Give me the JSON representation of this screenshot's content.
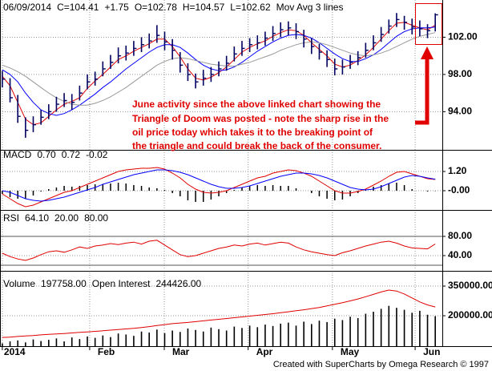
{
  "footer": "Created with SuperCharts by Omega Research © 1997",
  "chart_data": [
    {
      "type": "ohlc",
      "header": [
        {
          "text": "06/09/2014",
          "color": "#000000"
        },
        {
          "text": "C=104.41",
          "color": "#000000"
        },
        {
          "text": "+1.75",
          "color": "#00b000"
        },
        {
          "text": "O=102.78",
          "color": "#000000"
        },
        {
          "text": "H=104.57",
          "color": "#000000"
        },
        {
          "text": "L=102.62",
          "color": "#000000"
        },
        {
          "text": "Mov Avg 3 lines",
          "color": "#000000"
        }
      ],
      "annotation": [
        "June activity since the above linked chart showing the",
        "Triangle of Doom was posted - note the sharp rise in the",
        "oil price today which takes it to the breaking point of",
        "the triangle and could break the back of the consumer."
      ],
      "color": "#000060",
      "high": [
        98.4,
        97.6,
        95.8,
        93.4,
        93.5,
        94.2,
        94.8,
        95.6,
        96.0,
        95.9,
        96.8,
        98.0,
        98.3,
        99.4,
        100.1,
        100.9,
        101.1,
        101.6,
        102.0,
        102.4,
        103.3,
        102.6,
        101.8,
        100.4,
        99.2,
        98.1,
        98.5,
        98.8,
        99.4,
        100.0,
        101.0,
        101.6,
        101.9,
        102.2,
        102.6,
        103.2,
        103.6,
        103.7,
        103.5,
        102.8,
        101.9,
        101.3,
        100.6,
        99.7,
        99.6,
        100.1,
        100.5,
        101.4,
        102.2,
        103.1,
        103.9,
        104.6,
        104.3,
        104.0,
        103.8,
        103.4,
        104.57
      ],
      "low": [
        96.6,
        95.0,
        92.8,
        91.2,
        91.8,
        92.6,
        93.2,
        94.0,
        94.5,
        94.2,
        95.2,
        96.4,
        96.8,
        97.8,
        98.6,
        99.2,
        99.5,
        100.0,
        100.4,
        100.8,
        101.4,
        100.6,
        99.6,
        98.2,
        97.3,
        96.5,
        96.8,
        97.2,
        97.8,
        98.4,
        99.4,
        100.0,
        100.4,
        100.7,
        101.1,
        101.6,
        102.0,
        102.2,
        101.8,
        100.9,
        100.2,
        99.6,
        98.8,
        97.9,
        98.0,
        98.6,
        99.0,
        99.8,
        100.6,
        101.5,
        102.4,
        103.1,
        102.8,
        102.3,
        102.1,
        101.9,
        102.62
      ],
      "close": [
        97.5,
        95.5,
        93.5,
        92.0,
        92.6,
        93.4,
        94.0,
        94.8,
        95.2,
        95.0,
        96.0,
        97.2,
        97.5,
        98.6,
        99.3,
        100.0,
        100.3,
        100.8,
        101.2,
        101.6,
        102.2,
        101.5,
        100.6,
        99.0,
        98.0,
        97.2,
        97.6,
        98.0,
        98.6,
        99.2,
        100.2,
        100.8,
        101.2,
        101.4,
        101.9,
        102.4,
        102.8,
        103.0,
        102.6,
        101.8,
        101.0,
        100.4,
        99.6,
        98.6,
        98.8,
        99.3,
        99.8,
        100.6,
        101.4,
        102.3,
        103.2,
        103.9,
        103.6,
        103.1,
        102.9,
        102.7,
        104.41
      ],
      "moving_averages": [
        {
          "color": "#e00000",
          "values": [
            97.8,
            96.8,
            95.0,
            93.2,
            92.6,
            92.8,
            93.5,
            94.2,
            94.8,
            95.1,
            95.5,
            96.5,
            97.3,
            98.0,
            98.8,
            99.6,
            100.0,
            100.5,
            100.9,
            101.3,
            101.8,
            101.8,
            101.0,
            99.9,
            98.6,
            97.6,
            97.4,
            97.7,
            98.2,
            98.8,
            99.6,
            100.4,
            100.9,
            101.3,
            101.6,
            102.1,
            102.5,
            102.8,
            102.7,
            102.2,
            101.4,
            100.7,
            100.0,
            99.1,
            98.8,
            99.0,
            99.5,
            100.1,
            100.9,
            101.8,
            102.7,
            103.5,
            103.6,
            103.3,
            103.0,
            102.8,
            103.3
          ]
        },
        {
          "color": "#0000ff",
          "values": [
            98.5,
            98.0,
            97.2,
            96.0,
            95.0,
            94.2,
            93.8,
            93.6,
            93.8,
            94.2,
            94.7,
            95.3,
            95.9,
            96.6,
            97.2,
            97.9,
            98.6,
            99.2,
            99.8,
            100.4,
            100.9,
            101.2,
            101.2,
            100.9,
            100.3,
            99.6,
            99.0,
            98.6,
            98.4,
            98.5,
            98.8,
            99.3,
            99.9,
            100.5,
            101.0,
            101.5,
            101.9,
            102.2,
            102.3,
            102.2,
            101.9,
            101.4,
            100.8,
            100.2,
            99.7,
            99.4,
            99.4,
            99.7,
            100.1,
            100.7,
            101.4,
            102.1,
            102.6,
            102.9,
            103.0,
            103.0,
            103.1
          ]
        },
        {
          "color": "#999999",
          "values": [
            99.0,
            98.7,
            98.3,
            97.8,
            97.2,
            96.6,
            96.0,
            95.5,
            95.1,
            94.8,
            94.7,
            94.7,
            94.9,
            95.2,
            95.6,
            96.1,
            96.6,
            97.2,
            97.8,
            98.4,
            99.0,
            99.4,
            99.7,
            99.8,
            99.7,
            99.5,
            99.3,
            99.1,
            99.0,
            98.9,
            98.9,
            99.1,
            99.3,
            99.6,
            99.9,
            100.2,
            100.6,
            100.9,
            101.2,
            101.4,
            101.5,
            101.4,
            101.2,
            100.9,
            100.6,
            100.3,
            100.1,
            100.0,
            100.1,
            100.3,
            100.6,
            101.0,
            101.4,
            101.8,
            102.1,
            102.3,
            102.5
          ]
        }
      ],
      "xlim": [
        -0.3,
        56.5
      ],
      "ylim": [
        89.9,
        106
      ],
      "yticks": [
        {
          "value": 94,
          "label": "94.00"
        },
        {
          "value": 98,
          "label": "98.00"
        },
        {
          "value": 102,
          "label": "102.00"
        }
      ],
      "grid": true
    },
    {
      "type": "line",
      "title": "MACD",
      "series": [
        {
          "label": "0.70",
          "color": "#e00000",
          "values": [
            -0.2,
            -0.5,
            -0.8,
            -1.0,
            -0.9,
            -0.7,
            -0.5,
            -0.3,
            -0.1,
            0.0,
            0.2,
            0.4,
            0.6,
            0.8,
            1.0,
            1.2,
            1.3,
            1.35,
            1.4,
            1.4,
            1.45,
            1.35,
            1.1,
            0.8,
            0.4,
            0.1,
            -0.1,
            -0.15,
            -0.1,
            0.0,
            0.2,
            0.4,
            0.6,
            0.8,
            0.9,
            1.1,
            1.2,
            1.3,
            1.25,
            1.1,
            0.9,
            0.6,
            0.3,
            0.0,
            -0.15,
            -0.15,
            -0.05,
            0.1,
            0.35,
            0.6,
            0.9,
            1.15,
            1.2,
            1.05,
            0.9,
            0.75,
            0.7
          ]
        },
        {
          "label": "0.72",
          "color": "#0000ff",
          "values": [
            0.0,
            -0.1,
            -0.3,
            -0.5,
            -0.6,
            -0.65,
            -0.6,
            -0.5,
            -0.4,
            -0.25,
            -0.1,
            0.05,
            0.2,
            0.4,
            0.55,
            0.7,
            0.85,
            1.0,
            1.1,
            1.2,
            1.3,
            1.3,
            1.25,
            1.15,
            1.0,
            0.8,
            0.6,
            0.4,
            0.25,
            0.15,
            0.15,
            0.2,
            0.3,
            0.45,
            0.6,
            0.75,
            0.9,
            1.0,
            1.1,
            1.1,
            1.05,
            0.95,
            0.8,
            0.6,
            0.4,
            0.2,
            0.1,
            0.05,
            0.1,
            0.25,
            0.45,
            0.65,
            0.85,
            0.95,
            0.9,
            0.8,
            0.72
          ]
        }
      ],
      "histogram": {
        "label": "-0.02",
        "color": "#000000",
        "values": [
          -0.2,
          -0.4,
          -0.5,
          -0.5,
          -0.3,
          -0.05,
          0.1,
          0.2,
          0.3,
          0.25,
          0.3,
          0.35,
          0.4,
          0.4,
          0.45,
          0.5,
          0.45,
          0.35,
          0.3,
          0.2,
          0.15,
          0.05,
          -0.15,
          -0.35,
          -0.6,
          -0.7,
          -0.7,
          -0.55,
          -0.35,
          -0.15,
          0.05,
          0.2,
          0.3,
          0.35,
          0.3,
          0.35,
          0.3,
          0.3,
          0.15,
          0.0,
          -0.15,
          -0.35,
          -0.5,
          -0.6,
          -0.55,
          -0.35,
          -0.15,
          0.05,
          0.25,
          0.35,
          0.45,
          0.5,
          0.35,
          0.1,
          0.0,
          -0.05,
          -0.02
        ]
      },
      "xlim": [
        -0.3,
        56.5
      ],
      "ylim": [
        -1.2,
        2.55
      ],
      "yticks": [
        {
          "value": 0,
          "label": "-0.00"
        },
        {
          "value": 1.2,
          "label": "1.20"
        }
      ],
      "grid": true
    },
    {
      "type": "line",
      "title": "RSI",
      "series": [
        {
          "label": "64.10",
          "color": "#e00000",
          "values": [
            45,
            38,
            33,
            30,
            35,
            42,
            48,
            50,
            47,
            52,
            58,
            55,
            60,
            62,
            65,
            63,
            66,
            68,
            64,
            70,
            72,
            62,
            52,
            42,
            38,
            40,
            45,
            50,
            55,
            58,
            62,
            60,
            64,
            66,
            62,
            65,
            68,
            66,
            58,
            52,
            48,
            45,
            42,
            40,
            46,
            50,
            55,
            60,
            64,
            68,
            70,
            66,
            60,
            56,
            55,
            54,
            64.1
          ]
        }
      ],
      "levels": [
        {
          "value": 20,
          "label": "20.00",
          "color": "#000000"
        },
        {
          "value": 80,
          "label": "80.00",
          "color": "#888888"
        }
      ],
      "xlim": [
        -0.3,
        56.5
      ],
      "ylim": [
        13.3,
        135
      ],
      "yticks": [
        {
          "value": 40,
          "label": "40.00"
        },
        {
          "value": 80,
          "label": "80.00"
        }
      ],
      "grid": true
    },
    {
      "type": "volume",
      "title": "Volume",
      "series": [
        {
          "label": "197758.00",
          "color": "#000000",
          "values": [
            60000,
            70000,
            75000,
            65000,
            80000,
            72000,
            78000,
            85000,
            70000,
            90000,
            82000,
            95000,
            88000,
            100000,
            92000,
            110000,
            105000,
            98000,
            120000,
            115000,
            130000,
            112000,
            125000,
            118000,
            135000,
            128000,
            120000,
            140000,
            132000,
            125000,
            145000,
            138000,
            150000,
            142000,
            155000,
            148000,
            160000,
            165000,
            150000,
            170000,
            158000,
            175000,
            168000,
            185000,
            178000,
            195000,
            188000,
            210000,
            220000,
            235000,
            250000,
            240000,
            230000,
            215000,
            225000,
            205000,
            197758
          ]
        },
        {
          "name": "Open Interest",
          "label": "244426.00",
          "color": "#e00000",
          "values": [
            90000,
            92000,
            95000,
            98000,
            100000,
            103000,
            106000,
            108000,
            110000,
            113000,
            116000,
            118000,
            121000,
            124000,
            127000,
            130000,
            133000,
            136000,
            140000,
            145000,
            150000,
            155000,
            160000,
            163000,
            166000,
            170000,
            174000,
            178000,
            182000,
            186000,
            190000,
            194000,
            198000,
            202000,
            206000,
            210000,
            215000,
            220000,
            225000,
            230000,
            236000,
            242000,
            250000,
            258000,
            266000,
            275000,
            285000,
            296000,
            308000,
            320000,
            330000,
            325000,
            310000,
            290000,
            270000,
            255000,
            244426
          ]
        }
      ],
      "xlim": [
        -0.3,
        56.5
      ],
      "xticks": [
        {
          "value": 0,
          "label": "2014"
        },
        {
          "value": 11.3,
          "label": "Feb"
        },
        {
          "value": 20.95,
          "label": "Mar"
        },
        {
          "value": 31.8,
          "label": "Apr"
        },
        {
          "value": 42.7,
          "label": "May"
        },
        {
          "value": 53.4,
          "label": "Jun"
        }
      ],
      "ylim": [
        46000,
        419000
      ],
      "yticks": [
        {
          "value": 200000,
          "label": "200000.00"
        },
        {
          "value": 350000,
          "label": "350000.00"
        }
      ],
      "grid": true
    }
  ]
}
